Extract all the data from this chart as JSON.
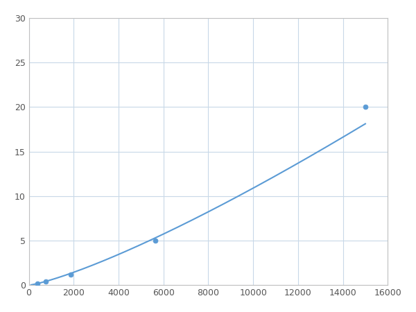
{
  "x": [
    375,
    750,
    1875,
    5625,
    15000
  ],
  "y": [
    0.2,
    0.4,
    1.2,
    5.0,
    20.0
  ],
  "line_color": "#5b9bd5",
  "marker_color": "#5b9bd5",
  "marker_size": 5,
  "line_width": 1.5,
  "xlim": [
    0,
    16000
  ],
  "ylim": [
    0,
    30
  ],
  "xticks": [
    0,
    2000,
    4000,
    6000,
    8000,
    10000,
    12000,
    14000,
    16000
  ],
  "yticks": [
    0,
    5,
    10,
    15,
    20,
    25,
    30
  ],
  "grid_color": "#c8d8e8",
  "background_color": "#ffffff",
  "figsize": [
    6.0,
    4.5
  ],
  "dpi": 100
}
